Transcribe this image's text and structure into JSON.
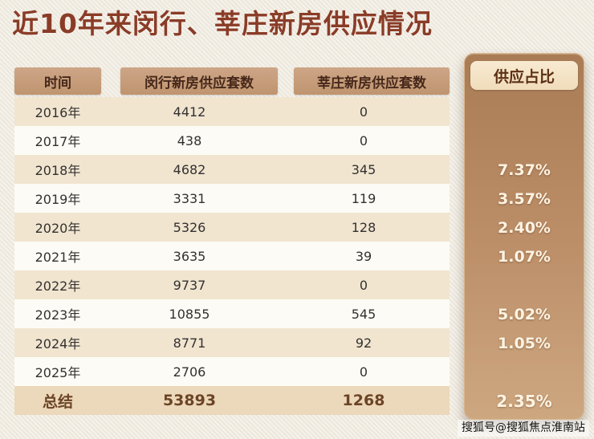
{
  "title": "近10年来闵行、莘庄新房供应情况",
  "watermark": "搜狐号@搜狐焦点淮南站",
  "colors": {
    "page_bg": "#f0ebe0",
    "title_text": "#8a3c27",
    "header_bg": "#c69c79",
    "header_text": "#46281a",
    "row_tan": "#f1e5d0",
    "row_white": "#fdfbf5",
    "summary_bg": "#ecd8ba",
    "panel_bg": "#b58862",
    "panel_header_bg": "#f5e4c7",
    "panel_value_text": "#fdf3e2"
  },
  "table": {
    "col_time": "时间",
    "col_minhang": "闵行新房供应套数",
    "col_xinzhuang": "莘庄新房供应套数",
    "col_ratio": "供应占比",
    "rows": [
      {
        "year": "2016年",
        "minhang": "4412",
        "xinzhuang": "0",
        "ratio": ""
      },
      {
        "year": "2017年",
        "minhang": "438",
        "xinzhuang": "0",
        "ratio": ""
      },
      {
        "year": "2018年",
        "minhang": "4682",
        "xinzhuang": "345",
        "ratio": "7.37%"
      },
      {
        "year": "2019年",
        "minhang": "3331",
        "xinzhuang": "119",
        "ratio": "3.57%"
      },
      {
        "year": "2020年",
        "minhang": "5326",
        "xinzhuang": "128",
        "ratio": "2.40%"
      },
      {
        "year": "2021年",
        "minhang": "3635",
        "xinzhuang": "39",
        "ratio": "1.07%"
      },
      {
        "year": "2022年",
        "minhang": "9737",
        "xinzhuang": "0",
        "ratio": ""
      },
      {
        "year": "2023年",
        "minhang": "10855",
        "xinzhuang": "545",
        "ratio": "5.02%"
      },
      {
        "year": "2024年",
        "minhang": "8771",
        "xinzhuang": "92",
        "ratio": "1.05%"
      },
      {
        "year": "2025年",
        "minhang": "2706",
        "xinzhuang": "0",
        "ratio": ""
      }
    ],
    "summary": {
      "year": "总结",
      "minhang": "53893",
      "xinzhuang": "1268",
      "ratio": "2.35%"
    }
  },
  "chart_data": {
    "type": "table",
    "title": "近10年来闵行、莘庄新房供应情况",
    "columns": [
      "时间",
      "闵行新房供应套数",
      "莘庄新房供应套数",
      "供应占比"
    ],
    "rows": [
      [
        "2016年",
        4412,
        0,
        null
      ],
      [
        "2017年",
        438,
        0,
        null
      ],
      [
        "2018年",
        4682,
        345,
        "7.37%"
      ],
      [
        "2019年",
        3331,
        119,
        "3.57%"
      ],
      [
        "2020年",
        5326,
        128,
        "2.40%"
      ],
      [
        "2021年",
        3635,
        39,
        "1.07%"
      ],
      [
        "2022年",
        9737,
        0,
        null
      ],
      [
        "2023年",
        10855,
        545,
        "5.02%"
      ],
      [
        "2024年",
        8771,
        92,
        "1.05%"
      ],
      [
        "2025年",
        2706,
        0,
        null
      ],
      [
        "总结",
        53893,
        1268,
        "2.35%"
      ]
    ]
  }
}
